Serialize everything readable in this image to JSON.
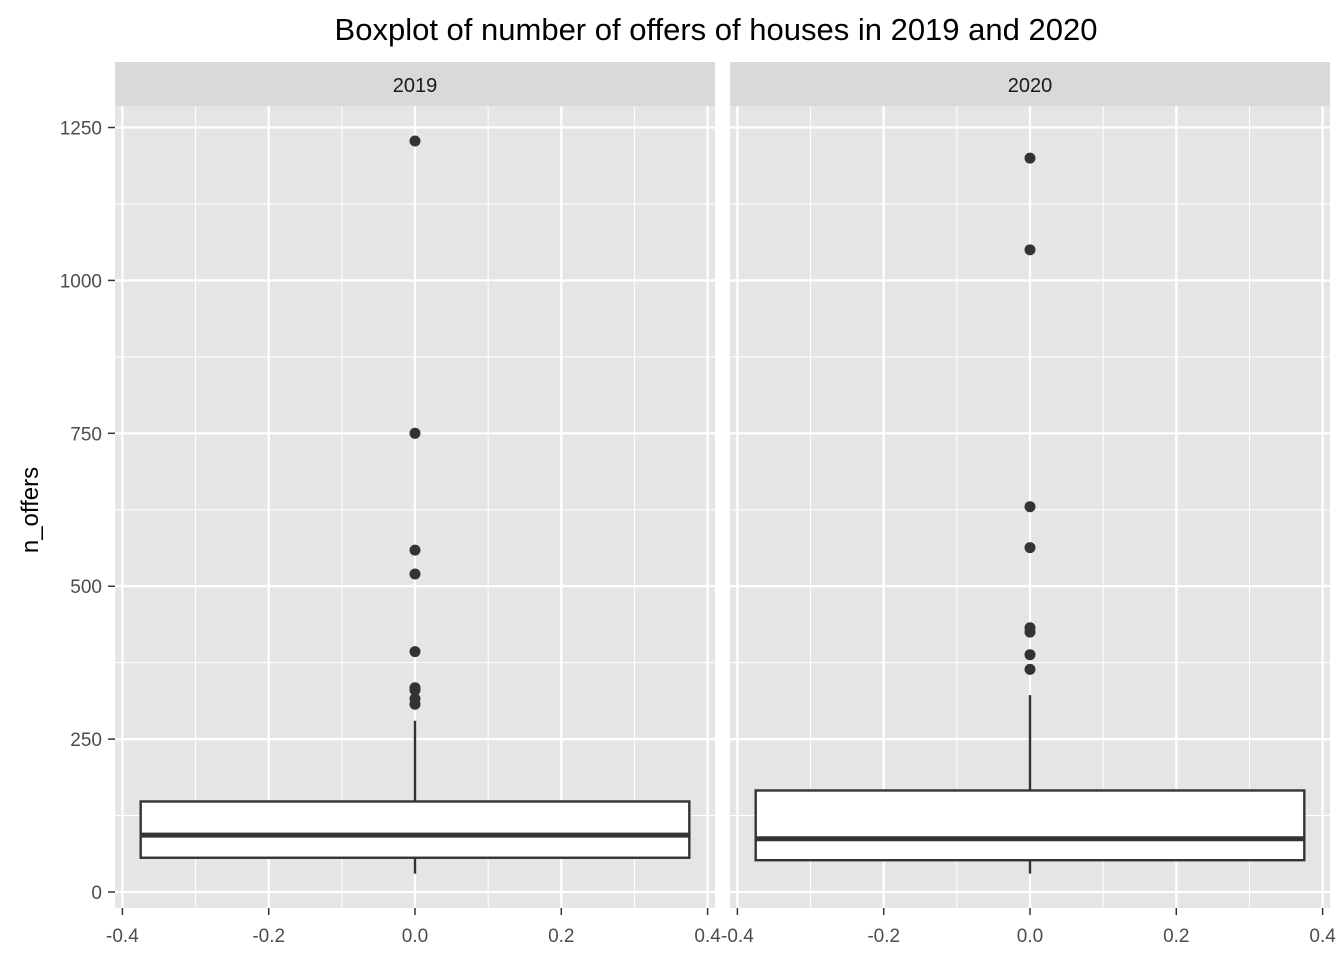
{
  "chart_data": {
    "type": "boxplot",
    "title": "Boxplot of number of offers of houses in 2019 and 2020",
    "xlabel": "",
    "ylabel": "n_offers",
    "xlim": [
      -0.4,
      0.4
    ],
    "ylim": [
      0,
      1250
    ],
    "x_ticks": [
      -0.4,
      -0.2,
      0.0,
      0.2,
      0.4
    ],
    "x_tick_labels": [
      "-0.4",
      "-0.2",
      "0.0",
      "0.2",
      "0.4"
    ],
    "y_ticks": [
      0,
      250,
      500,
      750,
      1000,
      1250
    ],
    "y_tick_labels": [
      "0",
      "250",
      "500",
      "750",
      "1000",
      "1250"
    ],
    "grid": true,
    "colors": {
      "panel_background": "#e5e5e5",
      "strip_background": "#d9d9d9",
      "gridline": "#ffffff",
      "box_fill": "#ffffff",
      "box_line": "#333333",
      "outlier": "#333333"
    },
    "facets": [
      {
        "label": "2019",
        "box": {
          "x_center": 0.0,
          "width": 0.75,
          "q1": 56,
          "median": 93,
          "q3": 148,
          "whisker_low": 30,
          "whisker_high": 280
        },
        "outliers": [
          1228,
          750,
          559,
          520,
          393,
          334,
          330,
          316,
          307
        ]
      },
      {
        "label": "2020",
        "box": {
          "x_center": 0.0,
          "width": 0.75,
          "q1": 52,
          "median": 87,
          "q3": 166,
          "whisker_low": 30,
          "whisker_high": 322
        },
        "outliers": [
          1200,
          1050,
          630,
          563,
          432,
          425,
          388,
          364
        ]
      }
    ]
  }
}
